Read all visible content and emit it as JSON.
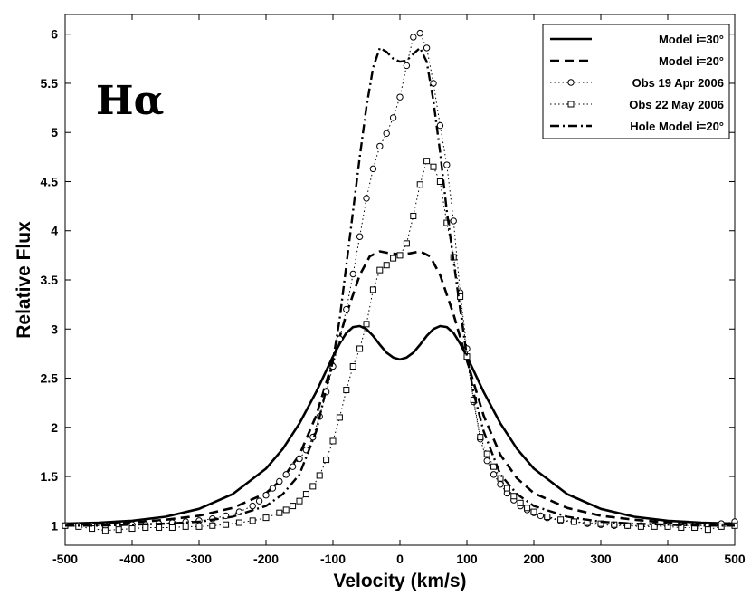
{
  "chart_data": {
    "type": "line",
    "line_label": "Hα",
    "xlabel": "Velocity (km/s)",
    "ylabel": "Relative Flux",
    "xlim": [
      -500,
      500
    ],
    "ylim": [
      0.8,
      6.2
    ],
    "xticks": [
      -500,
      -400,
      -300,
      -200,
      -100,
      0,
      100,
      200,
      300,
      400,
      500
    ],
    "yticks": [
      1,
      1.5,
      2,
      2.5,
      3,
      3.5,
      4,
      4.5,
      5,
      5.5,
      6
    ],
    "legend_position": "top-right",
    "series": [
      {
        "name": "Model i=30°",
        "style": "solid",
        "marker": "none",
        "color": "#000000",
        "x": [
          -500,
          -450,
          -400,
          -350,
          -300,
          -250,
          -200,
          -175,
          -150,
          -125,
          -100,
          -90,
          -80,
          -70,
          -60,
          -50,
          -40,
          -30,
          -20,
          -10,
          0,
          10,
          20,
          30,
          40,
          50,
          60,
          70,
          80,
          90,
          100,
          125,
          150,
          175,
          200,
          250,
          300,
          350,
          400,
          450,
          500
        ],
        "y": [
          1.02,
          1.03,
          1.05,
          1.09,
          1.17,
          1.32,
          1.58,
          1.78,
          2.04,
          2.36,
          2.72,
          2.85,
          2.96,
          3.02,
          3.03,
          3.0,
          2.93,
          2.84,
          2.76,
          2.71,
          2.69,
          2.71,
          2.76,
          2.84,
          2.93,
          3.0,
          3.03,
          3.02,
          2.96,
          2.85,
          2.72,
          2.36,
          2.04,
          1.78,
          1.58,
          1.32,
          1.17,
          1.09,
          1.05,
          1.03,
          1.02
        ]
      },
      {
        "name": "Model i=20°",
        "style": "dashed",
        "marker": "none",
        "color": "#000000",
        "x": [
          -500,
          -450,
          -400,
          -350,
          -300,
          -250,
          -200,
          -175,
          -150,
          -125,
          -100,
          -80,
          -60,
          -45,
          -30,
          -15,
          0,
          15,
          30,
          45,
          60,
          80,
          100,
          125,
          150,
          175,
          200,
          250,
          300,
          350,
          400,
          450,
          500
        ],
        "y": [
          1.01,
          1.02,
          1.03,
          1.06,
          1.1,
          1.18,
          1.33,
          1.48,
          1.72,
          2.12,
          2.68,
          3.15,
          3.55,
          3.74,
          3.79,
          3.77,
          3.76,
          3.77,
          3.79,
          3.74,
          3.55,
          3.15,
          2.68,
          2.12,
          1.72,
          1.48,
          1.33,
          1.18,
          1.1,
          1.06,
          1.03,
          1.02,
          1.01
        ]
      },
      {
        "name": "Obs 19 Apr 2006",
        "style": "dotted",
        "marker": "circle",
        "color": "#000000",
        "x": [
          -500,
          -480,
          -460,
          -440,
          -420,
          -400,
          -380,
          -360,
          -340,
          -320,
          -300,
          -280,
          -260,
          -240,
          -220,
          -210,
          -200,
          -190,
          -180,
          -170,
          -160,
          -150,
          -140,
          -130,
          -120,
          -110,
          -100,
          -90,
          -80,
          -70,
          -60,
          -50,
          -40,
          -30,
          -20,
          -10,
          0,
          10,
          20,
          30,
          40,
          50,
          60,
          70,
          80,
          90,
          100,
          110,
          120,
          130,
          140,
          150,
          160,
          170,
          180,
          190,
          200,
          210,
          220,
          240,
          260,
          280,
          300,
          320,
          340,
          360,
          380,
          400,
          420,
          440,
          460,
          480,
          500
        ],
        "y": [
          1.0,
          1.0,
          1.0,
          1.0,
          1.0,
          1.01,
          1.01,
          1.02,
          1.03,
          1.04,
          1.05,
          1.07,
          1.1,
          1.14,
          1.2,
          1.25,
          1.31,
          1.38,
          1.45,
          1.52,
          1.6,
          1.68,
          1.77,
          1.9,
          2.11,
          2.36,
          2.62,
          2.9,
          3.2,
          3.56,
          3.94,
          4.33,
          4.63,
          4.86,
          4.99,
          5.15,
          5.36,
          5.68,
          5.97,
          6.01,
          5.86,
          5.5,
          5.07,
          4.67,
          4.1,
          3.37,
          2.8,
          2.26,
          1.88,
          1.66,
          1.52,
          1.42,
          1.33,
          1.26,
          1.2,
          1.16,
          1.13,
          1.1,
          1.08,
          1.05,
          1.04,
          1.02,
          1.01,
          1.0,
          1.0,
          1.0,
          1.0,
          1.0,
          1.0,
          1.0,
          1.0,
          1.02,
          1.04
        ]
      },
      {
        "name": "Obs 22 May 2006",
        "style": "dotted",
        "marker": "square",
        "color": "#000000",
        "x": [
          -500,
          -480,
          -460,
          -440,
          -420,
          -400,
          -380,
          -360,
          -340,
          -320,
          -300,
          -280,
          -260,
          -240,
          -220,
          -200,
          -180,
          -170,
          -160,
          -150,
          -140,
          -130,
          -120,
          -110,
          -100,
          -90,
          -80,
          -70,
          -60,
          -50,
          -40,
          -30,
          -20,
          -10,
          0,
          10,
          20,
          30,
          40,
          50,
          60,
          70,
          80,
          90,
          100,
          110,
          120,
          130,
          140,
          150,
          160,
          170,
          180,
          190,
          200,
          220,
          240,
          260,
          280,
          300,
          320,
          340,
          360,
          380,
          400,
          420,
          440,
          460,
          480,
          500
        ],
        "y": [
          1.0,
          0.99,
          0.97,
          0.95,
          0.96,
          0.97,
          0.98,
          0.98,
          0.98,
          0.99,
          0.99,
          1.0,
          1.01,
          1.03,
          1.05,
          1.08,
          1.13,
          1.16,
          1.2,
          1.25,
          1.32,
          1.4,
          1.51,
          1.67,
          1.86,
          2.1,
          2.38,
          2.62,
          2.8,
          3.05,
          3.4,
          3.6,
          3.65,
          3.72,
          3.75,
          3.87,
          4.15,
          4.47,
          4.71,
          4.65,
          4.5,
          4.08,
          3.73,
          3.33,
          2.72,
          2.28,
          1.9,
          1.73,
          1.6,
          1.48,
          1.38,
          1.3,
          1.23,
          1.18,
          1.14,
          1.09,
          1.06,
          1.04,
          1.03,
          1.02,
          1.01,
          1.0,
          0.99,
          0.99,
          0.99,
          0.98,
          0.98,
          0.96,
          0.99,
          1.0
        ]
      },
      {
        "name": "Hole Model i=20°",
        "style": "dashdot",
        "marker": "none",
        "color": "#000000",
        "x": [
          -500,
          -450,
          -400,
          -350,
          -300,
          -250,
          -200,
          -175,
          -150,
          -125,
          -100,
          -90,
          -80,
          -70,
          -60,
          -50,
          -40,
          -30,
          -20,
          -10,
          0,
          10,
          20,
          30,
          40,
          50,
          60,
          70,
          80,
          90,
          100,
          110,
          125,
          150,
          175,
          200,
          250,
          300,
          350,
          400,
          450,
          500
        ],
        "y": [
          1.0,
          1.0,
          1.01,
          1.02,
          1.04,
          1.09,
          1.2,
          1.32,
          1.52,
          1.96,
          2.68,
          3.1,
          3.65,
          4.2,
          4.75,
          5.26,
          5.66,
          5.86,
          5.82,
          5.75,
          5.72,
          5.73,
          5.8,
          5.86,
          5.72,
          5.32,
          4.8,
          4.2,
          3.7,
          3.2,
          2.72,
          2.35,
          1.96,
          1.52,
          1.32,
          1.2,
          1.09,
          1.04,
          1.02,
          1.01,
          1.0,
          1.0
        ]
      }
    ]
  }
}
